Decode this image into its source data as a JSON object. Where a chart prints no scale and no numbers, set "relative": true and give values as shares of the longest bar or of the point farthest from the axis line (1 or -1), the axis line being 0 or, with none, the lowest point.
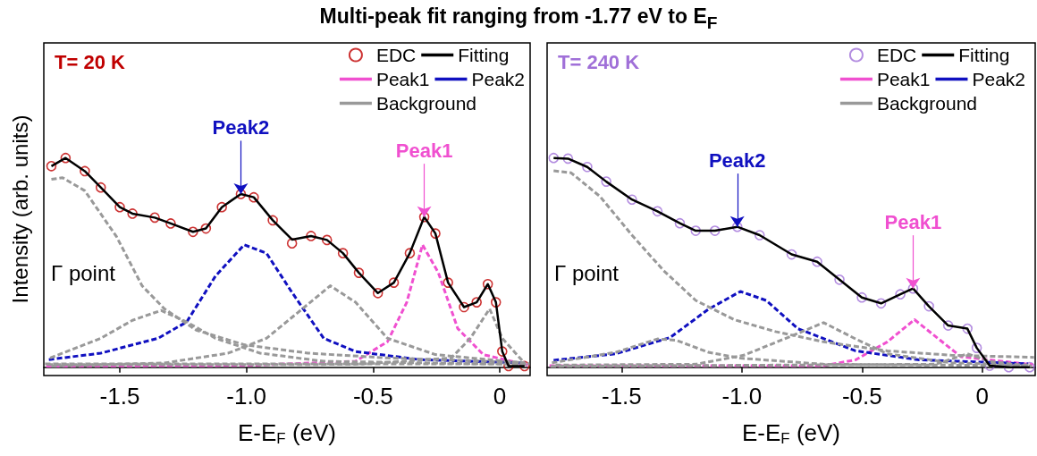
{
  "chart_data": [
    {
      "type": "line",
      "title": "Multi-peak fit ranging from -1.77 eV to E$_{F}$",
      "subtitle": "T= 20 K",
      "xlabel": "E-E$_{F}$ (eV)",
      "ylabel": "Intensity (arb. units)",
      "relative": true,
      "xlim": [
        -1.8,
        0.12
      ],
      "xticks": [
        -1.5,
        {
          "value": -1,
          "label": "-1.0"
        },
        -0.5,
        0
      ],
      "grid": false,
      "legend": "top right",
      "annotations": [
        "Γ point",
        {
          "text": "Peak2",
          "x": -1.022,
          "y": 0.828
        },
        {
          "text": "Peak1",
          "x": -0.298,
          "y": 0.718
        }
      ],
      "series": [
        {
          "name": "EDC",
          "type": "scatter",
          "marker": "circle",
          "color": "#c00000",
          "x": [
            -1.77,
            -1.714,
            -1.638,
            -1.575,
            -1.5,
            -1.45,
            -1.362,
            -1.299,
            -1.211,
            -1.16,
            -1.097,
            -1.022,
            -0.971,
            -0.896,
            -0.82,
            -0.745,
            -0.682,
            -0.619,
            -0.556,
            -0.481,
            -0.418,
            -0.355,
            -0.298,
            -0.254,
            -0.204,
            -0.141,
            -0.091,
            -0.047,
            -0.015,
            0.01,
            0.035,
            0.098
          ],
          "values": [
            0.961,
            1.0,
            0.937,
            0.859,
            0.765,
            0.734,
            0.715,
            0.687,
            0.647,
            0.663,
            0.765,
            0.828,
            0.812,
            0.702,
            0.592,
            0.627,
            0.608,
            0.545,
            0.451,
            0.354,
            0.404,
            0.545,
            0.718,
            0.639,
            0.404,
            0.287,
            0.31,
            0.397,
            0.31,
            0.075,
            0.005,
            0.005
          ]
        },
        {
          "name": "Fitting",
          "type": "line",
          "line_style": "solid",
          "color": "#000000",
          "x": [
            -1.77,
            -1.714,
            -1.638,
            -1.575,
            -1.5,
            -1.45,
            -1.362,
            -1.299,
            -1.211,
            -1.16,
            -1.097,
            -1.022,
            -0.971,
            -0.896,
            -0.82,
            -0.745,
            -0.682,
            -0.619,
            -0.556,
            -0.481,
            -0.418,
            -0.355,
            -0.298,
            -0.254,
            -0.204,
            -0.141,
            -0.091,
            -0.047,
            -0.015,
            0.01,
            0.035,
            0.098
          ],
          "values": [
            0.961,
            1.0,
            0.937,
            0.859,
            0.765,
            0.734,
            0.715,
            0.687,
            0.647,
            0.663,
            0.765,
            0.828,
            0.812,
            0.702,
            0.61,
            0.627,
            0.608,
            0.545,
            0.451,
            0.354,
            0.404,
            0.545,
            0.718,
            0.639,
            0.404,
            0.287,
            0.31,
            0.397,
            0.31,
            0.075,
            0.005,
            0.005
          ]
        },
        {
          "name": "Peak1",
          "type": "line",
          "line_style": "dashed",
          "color": "#f050d0",
          "x": [
            -1.79,
            -1.0,
            -0.569,
            -0.443,
            -0.367,
            -0.305,
            -0.242,
            -0.166,
            -0.065,
            0.11
          ],
          "values": [
            0.005,
            0.008,
            0.028,
            0.122,
            0.31,
            0.585,
            0.451,
            0.185,
            0.06,
            0.01
          ]
        },
        {
          "name": "Peak2",
          "type": "line",
          "line_style": "dashed",
          "color": "#1010c0",
          "x": [
            -1.78,
            -1.575,
            -1.349,
            -1.236,
            -1.122,
            -1.009,
            -0.921,
            -0.82,
            -0.695,
            -0.569,
            -0.317,
            0.1
          ],
          "values": [
            0.036,
            0.067,
            0.138,
            0.216,
            0.436,
            0.585,
            0.545,
            0.357,
            0.138,
            0.075,
            0.036,
            0.02
          ]
        },
        {
          "name": "Background",
          "type": "line",
          "line_style": "dashed",
          "color": "#999999",
          "x": [
            -1.77,
            -1.726,
            -1.638,
            -1.513,
            -1.412,
            -1.324,
            -1.198,
            -1.009,
            -0.757,
            -0.443,
            0.098
          ],
          "values": [
            0.898,
            0.906,
            0.843,
            0.624,
            0.389,
            0.279,
            0.177,
            0.107,
            0.067,
            0.044,
            0.022
          ]
        },
        {
          "type": "line",
          "line_style": "dashed",
          "color": "#999999",
          "x": [
            -1.775,
            -1.575,
            -1.45,
            -1.337,
            -1.236,
            -1.122,
            -0.946,
            -0.695,
            0.105
          ],
          "values": [
            0.044,
            0.138,
            0.224,
            0.271,
            0.216,
            0.138,
            0.067,
            0.028,
            0.013
          ]
        },
        {
          "type": "line",
          "line_style": "dashed",
          "color": "#999999",
          "x": [
            -1.77,
            -1.324,
            -1.072,
            -0.921,
            -0.795,
            -0.669,
            -0.569,
            -0.443,
            -0.254,
            0.115
          ],
          "values": [
            0.005,
            0.02,
            0.067,
            0.138,
            0.263,
            0.389,
            0.31,
            0.138,
            0.06,
            0.018
          ]
        },
        {
          "type": "line",
          "line_style": "dashed",
          "color": "#999999",
          "x": [
            -1.785,
            -0.569,
            -0.191,
            -0.116,
            -0.04,
            0.01,
            0.09
          ],
          "values": [
            0.012,
            0.013,
            0.044,
            0.138,
            0.279,
            0.138,
            0.03
          ]
        },
        {
          "type": "line",
          "line_style": "dashed",
          "color": "#999999",
          "x": [
            -1.795,
            0.118
          ],
          "values": [
            0.016,
            0.016
          ]
        }
      ]
    },
    {
      "type": "line",
      "subtitle": "T= 240 K",
      "xlabel": "E-E$_{F}$ (eV)",
      "relative": true,
      "xlim": [
        -1.81,
        0.22
      ],
      "xticks": [
        -1.5,
        {
          "value": -1,
          "label": "-1.0"
        },
        -0.5,
        0
      ],
      "grid": false,
      "legend": "top right",
      "annotations": [
        "Γ point",
        {
          "text": "Peak2",
          "x": -1.019,
          "y": 0.671
        },
        {
          "text": "Peak1",
          "x": -0.288,
          "y": 0.376
        }
      ],
      "series": [
        {
          "name": "EDC",
          "type": "scatter",
          "marker": "circle",
          "color": "#a070d8",
          "x": [
            -1.783,
            -1.723,
            -1.643,
            -1.564,
            -1.457,
            -1.351,
            -1.258,
            -1.192,
            -1.112,
            -1.019,
            -0.926,
            -0.793,
            -0.687,
            -0.594,
            -0.501,
            -0.421,
            -0.341,
            -0.288,
            -0.222,
            -0.142,
            -0.062,
            -0.023,
            0.031,
            0.11,
            0.197
          ],
          "values": [
            1.0,
            0.997,
            0.957,
            0.887,
            0.801,
            0.745,
            0.688,
            0.652,
            0.652,
            0.671,
            0.631,
            0.539,
            0.504,
            0.418,
            0.333,
            0.305,
            0.348,
            0.376,
            0.291,
            0.199,
            0.184,
            0.092,
            0.007,
            0,
            0
          ]
        },
        {
          "name": "Fitting",
          "type": "line",
          "line_style": "solid",
          "color": "#000000",
          "x": [
            -1.783,
            -1.723,
            -1.643,
            -1.564,
            -1.457,
            -1.351,
            -1.258,
            -1.192,
            -1.112,
            -1.019,
            -0.926,
            -0.793,
            -0.687,
            -0.594,
            -0.501,
            -0.421,
            -0.341,
            -0.288,
            -0.222,
            -0.142,
            -0.062,
            -0.023,
            0.031,
            0.11,
            0.197
          ],
          "values": [
            1.0,
            0.997,
            0.957,
            0.887,
            0.801,
            0.745,
            0.688,
            0.652,
            0.652,
            0.671,
            0.631,
            0.539,
            0.504,
            0.418,
            0.333,
            0.305,
            0.348,
            0.376,
            0.291,
            0.199,
            0.184,
            0.092,
            0.007,
            0,
            0
          ]
        },
        {
          "name": "Peak1",
          "type": "line",
          "line_style": "dashed",
          "color": "#f050d0",
          "x": [
            -1.8,
            -0.66,
            -0.527,
            -0.395,
            -0.282,
            -0.182,
            -0.089,
            0.21
          ],
          "values": [
            0.007,
            0.007,
            0.035,
            0.121,
            0.227,
            0.135,
            0.05,
            0.012
          ]
        },
        {
          "name": "Peak2",
          "type": "line",
          "line_style": "dashed",
          "color": "#1010c0",
          "x": [
            -1.783,
            -1.524,
            -1.298,
            -1.139,
            -1.006,
            -0.899,
            -0.767,
            -0.527,
            -0.262,
            0.19
          ],
          "values": [
            0.033,
            0.064,
            0.142,
            0.277,
            0.362,
            0.319,
            0.184,
            0.078,
            0.035,
            0.016
          ]
        },
        {
          "name": "Background",
          "type": "line",
          "line_style": "dashed",
          "color": "#999999",
          "x": [
            -1.783,
            -1.71,
            -1.59,
            -1.457,
            -1.325,
            -1.192,
            -1.032,
            -0.86,
            -0.66,
            -0.395,
            -0.129,
            0.215
          ],
          "values": [
            0.939,
            0.929,
            0.816,
            0.631,
            0.461,
            0.319,
            0.227,
            0.17,
            0.121,
            0.078,
            0.057,
            0.047
          ]
        },
        {
          "type": "line",
          "line_style": "dashed",
          "color": "#999999",
          "x": [
            -1.79,
            -1.524,
            -1.351,
            -1.271,
            -1.139,
            -1.006,
            -0.66,
            0.205
          ],
          "values": [
            0.021,
            0.071,
            0.135,
            0.128,
            0.071,
            0.043,
            0.014,
            0.007
          ]
        },
        {
          "type": "line",
          "line_style": "dashed",
          "color": "#999999",
          "x": [
            -1.775,
            -1.192,
            -0.992,
            -0.793,
            -0.66,
            -0.527,
            -0.395,
            -0.129,
            0.2
          ],
          "values": [
            0.01,
            0.014,
            0.057,
            0.149,
            0.213,
            0.135,
            0.064,
            0.021,
            0.01
          ]
        },
        {
          "type": "line",
          "line_style": "dashed",
          "color": "#999999",
          "x": [
            -1.795,
            -0.195,
            -0.062,
            0.031,
            0.185
          ],
          "values": [
            0.004,
            0.014,
            0.064,
            0.028,
            0.005
          ]
        }
      ]
    }
  ]
}
